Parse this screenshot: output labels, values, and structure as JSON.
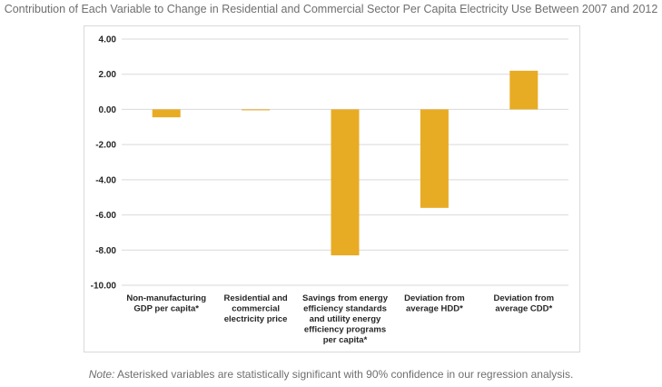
{
  "chart_data": {
    "type": "bar",
    "title": "Contribution of Each Variable to Change in Residential and Commercial Sector Per Capita Electricity Use Between 2007 and 2012",
    "xlabel": "",
    "ylabel": "",
    "ylim": [
      -10,
      4
    ],
    "yticks": [
      "4.00",
      "2.00",
      "0.00",
      "-2.00",
      "-4.00",
      "-6.00",
      "-8.00",
      "-10.00"
    ],
    "ytick_values": [
      4,
      2,
      0,
      -2,
      -4,
      -6,
      -8,
      -10
    ],
    "grid": true,
    "legend": "none",
    "bar_color": "#e8ab24",
    "categories": [
      [
        "Non-manufacturing",
        "GDP per capita*"
      ],
      [
        "Residential and",
        "commercial",
        "electricity price"
      ],
      [
        "Savings from energy",
        "efficiency standards",
        "and utility energy",
        "efficiency programs",
        "per capita*"
      ],
      [
        "Deviation from",
        "average HDD*"
      ],
      [
        "Deviation from",
        "average CDD*"
      ]
    ],
    "values": [
      -0.45,
      -0.05,
      -8.3,
      -5.6,
      2.2
    ]
  },
  "note": {
    "label": "Note:",
    "text": " Asterisked variables are statistically significant with 90% confidence in our regression analysis."
  }
}
